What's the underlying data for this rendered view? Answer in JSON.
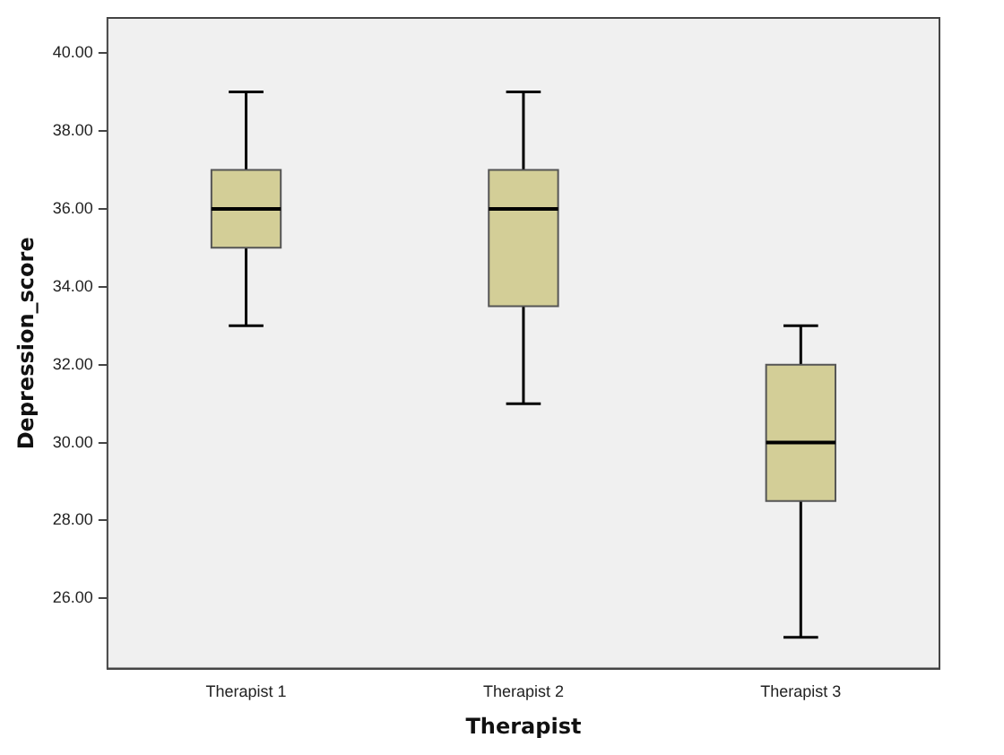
{
  "chart_data": {
    "type": "box",
    "xlabel": "Therapist",
    "ylabel": "Depression_score",
    "categories": [
      "Therapist 1",
      "Therapist 2",
      "Therapist 3"
    ],
    "color": "#d3ce97",
    "boxes": [
      {
        "low": 33,
        "q1": 35,
        "median": 36,
        "q3": 37,
        "high": 39
      },
      {
        "low": 31,
        "q1": 33.5,
        "median": 36,
        "q3": 37,
        "high": 39
      },
      {
        "low": 25,
        "q1": 28.5,
        "median": 30,
        "q3": 32,
        "high": 33
      }
    ],
    "ylim": [
      24.2,
      40.9
    ],
    "yticks": [
      {
        "value": 26,
        "label": "26.00"
      },
      {
        "value": 28,
        "label": "28.00"
      },
      {
        "value": 30,
        "label": "30.00"
      },
      {
        "value": 32,
        "label": "32.00"
      },
      {
        "value": 34,
        "label": "34.00"
      },
      {
        "value": 36,
        "label": "36.00"
      },
      {
        "value": 38,
        "label": "38.00"
      },
      {
        "value": 40,
        "label": "40.00"
      }
    ],
    "grid": false,
    "legend": false
  }
}
